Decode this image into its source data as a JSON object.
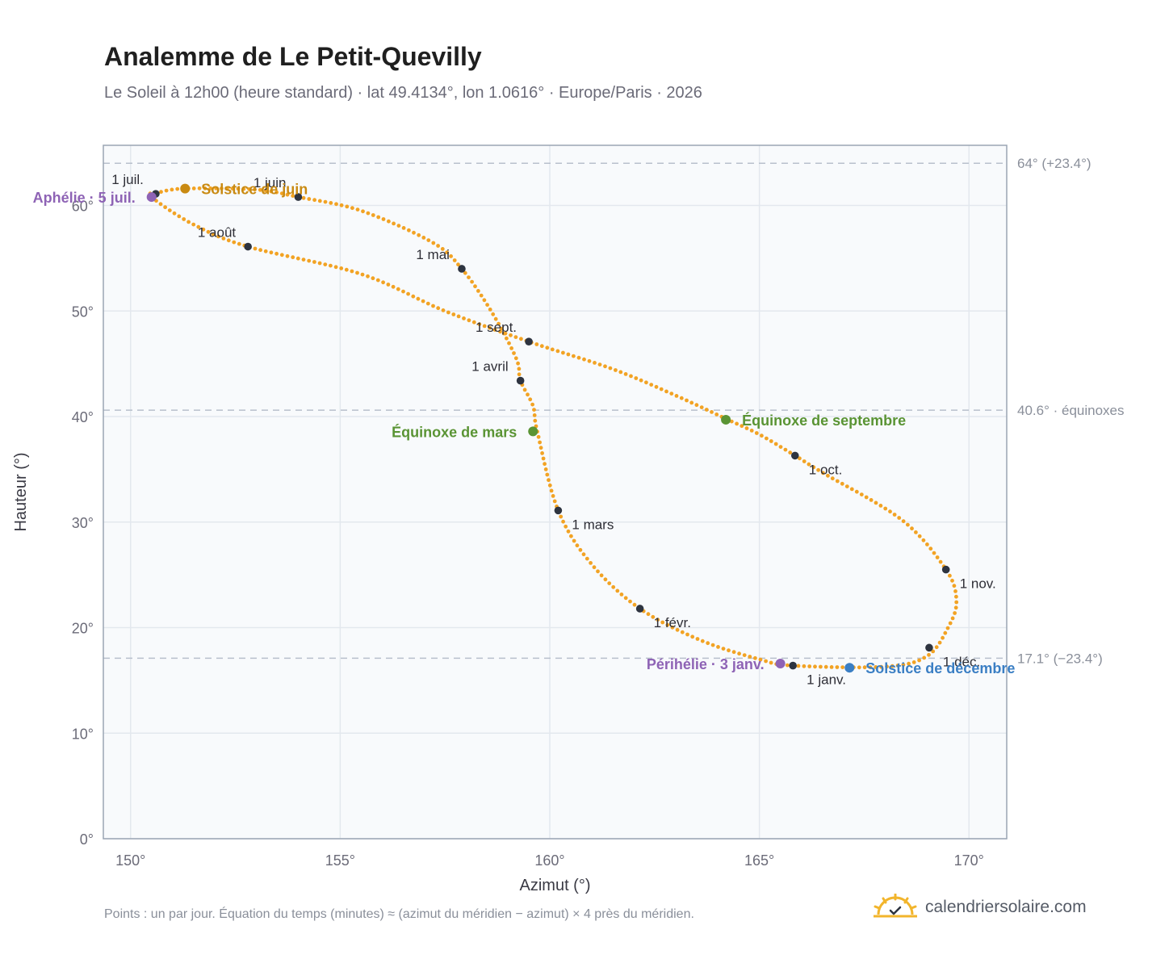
{
  "header": {
    "title": "Analemme de Le Petit-Quevilly",
    "subtitle": "Le Soleil à 12h00 (heure standard) · lat 49.4134°, lon 1.0616° · Europe/Paris · 2026"
  },
  "footer": {
    "note": "Points : un par jour. Équation du temps (minutes) ≈ (azimut du méridien − azimut) × 4 près du méridien.",
    "brand": "calendriersolaire.com",
    "brand_icon": "sun-logo-icon"
  },
  "colors": {
    "path": "#f2a324",
    "month_dot": "#2e3440",
    "solstice_june": "#c98a12",
    "solstice_december": "#3b7fc4",
    "equinox": "#5a9434",
    "apsis": "#8e63b5",
    "plot_bg": "#f8fafc",
    "reference_line": "#b8c0cc"
  },
  "chart_data": {
    "type": "scatter",
    "xlabel": "Azimut (°)",
    "ylabel": "Hauteur (°)",
    "xlim": [
      149.35,
      170.9
    ],
    "ylim": [
      0,
      65.7
    ],
    "x_ticks": [
      150,
      155,
      160,
      165,
      170
    ],
    "x_tick_labels": [
      "150°",
      "155°",
      "160°",
      "165°",
      "170°"
    ],
    "y_ticks": [
      0,
      10,
      20,
      30,
      40,
      50,
      60
    ],
    "y_tick_labels": [
      "0°",
      "10°",
      "20°",
      "30°",
      "40°",
      "50°",
      "60°"
    ],
    "grid": true,
    "reference_lines": [
      {
        "y": 64.0,
        "label": "64° (+23.4°)"
      },
      {
        "y": 40.6,
        "label": "40.6° · équinoxes"
      },
      {
        "y": 17.1,
        "label": "17.1° (−23.4°)"
      }
    ],
    "path_series": {
      "name": "daily",
      "points_per_day": 1,
      "x": [
        165.8,
        168.0,
        169.0,
        169.5,
        169.7,
        169.45,
        168.4,
        166.5,
        165.85,
        165.0,
        164.25,
        163.0,
        161.5,
        159.5,
        157.5,
        155.5,
        152.8,
        151.5,
        150.5,
        150.65,
        151.3,
        153.0,
        154.0,
        155.5,
        157.2,
        157.9,
        158.6,
        159.2,
        159.3,
        159.6,
        159.7,
        160.2,
        161.0,
        162.15,
        163.6,
        165.0,
        165.8
      ],
      "y": [
        16.4,
        16.3,
        17.3,
        20.0,
        22.5,
        25.5,
        30.2,
        34.7,
        36.3,
        38.3,
        39.7,
        42.0,
        44.5,
        47.1,
        50.0,
        53.5,
        56.1,
        58.2,
        60.8,
        61.2,
        61.6,
        61.5,
        60.8,
        59.5,
        56.5,
        54.0,
        50.0,
        45.5,
        43.4,
        41.0,
        38.6,
        31.1,
        26.0,
        21.8,
        18.8,
        17.0,
        16.4
      ]
    },
    "month_markers": [
      {
        "label": "1 janv.",
        "x": 165.8,
        "y": 16.4,
        "pos": "below-right"
      },
      {
        "label": "1 févr.",
        "x": 162.15,
        "y": 21.8,
        "pos": "below-right"
      },
      {
        "label": "1 mars",
        "x": 160.2,
        "y": 31.1,
        "pos": "below-right"
      },
      {
        "label": "1 avril",
        "x": 159.3,
        "y": 43.4,
        "pos": "above-left"
      },
      {
        "label": "1 mai",
        "x": 157.9,
        "y": 54.0,
        "pos": "above-left"
      },
      {
        "label": "1 juin",
        "x": 154.0,
        "y": 60.8,
        "pos": "above-left"
      },
      {
        "label": "1 juil.",
        "x": 150.6,
        "y": 61.1,
        "pos": "above-left"
      },
      {
        "label": "1 août",
        "x": 152.8,
        "y": 56.1,
        "pos": "above-left"
      },
      {
        "label": "1 sept.",
        "x": 159.5,
        "y": 47.1,
        "pos": "above-left"
      },
      {
        "label": "1 oct.",
        "x": 165.85,
        "y": 36.3,
        "pos": "below-right"
      },
      {
        "label": "1 nov.",
        "x": 169.45,
        "y": 25.5,
        "pos": "below-right"
      },
      {
        "label": "1 déc.",
        "x": 169.05,
        "y": 18.1,
        "pos": "below-right"
      }
    ],
    "events": [
      {
        "label": "Solstice de juin",
        "x": 151.3,
        "y": 61.6,
        "color_key": "solstice_june",
        "pos": "right"
      },
      {
        "label": "Aphélie · 5 juil.",
        "x": 150.5,
        "y": 60.8,
        "color_key": "apsis",
        "pos": "left"
      },
      {
        "label": "Équinoxe de mars",
        "x": 159.6,
        "y": 38.6,
        "color_key": "equinox",
        "pos": "left"
      },
      {
        "label": "Équinoxe de septembre",
        "x": 164.2,
        "y": 39.7,
        "color_key": "equinox",
        "pos": "right"
      },
      {
        "label": "Périhélie · 3 janv.",
        "x": 165.5,
        "y": 16.6,
        "color_key": "apsis",
        "pos": "left"
      },
      {
        "label": "Solstice de décembre",
        "x": 167.15,
        "y": 16.2,
        "color_key": "solstice_december",
        "pos": "right"
      }
    ]
  }
}
